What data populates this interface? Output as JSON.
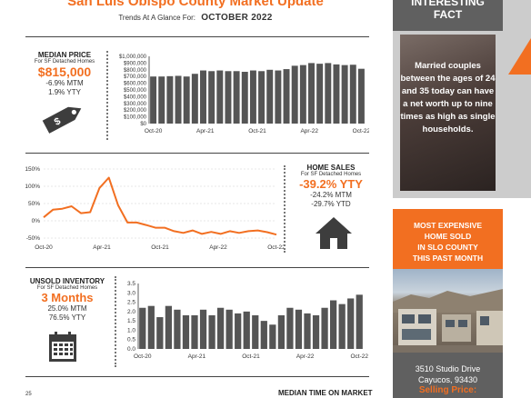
{
  "header": {
    "title": "San Luis Obispo County Market Update",
    "trends_label": "Trends At A Glance For:",
    "month": "OCTOBER 2022"
  },
  "median_price": {
    "heading": "MEDIAN PRICE",
    "subheading": "For SF Detached Homes",
    "value": "$815,000",
    "mtm": "-6.9% MTM",
    "ytd": "1.9% YTY"
  },
  "home_sales": {
    "heading": "HOME SALES",
    "subheading": "For SF Detached Homes",
    "value": "-39.2% YTY",
    "mtm": "-24.2% MTM",
    "ytd": "-29.7% YTD"
  },
  "unsold_inventory": {
    "heading": "UNSOLD INVENTORY",
    "subheading": "For SF Detached Homes",
    "value": "3 Months",
    "mtm": "25.0% MTM",
    "ytd": "76.5% YTY"
  },
  "bottom": {
    "heading": "MEDIAN TIME ON MARKET",
    "tick_top": "25"
  },
  "sidebar": {
    "fact_title_1": "INTERESTING",
    "fact_title_2": "FACT",
    "fact_text": "Married couples between the ages of 24 and 35 today can have a net worth up to nine times as high as single households.",
    "expensive_lines": [
      "MOST EXPENSIVE",
      "HOME SOLD",
      "IN SLO COUNTY",
      "THIS PAST MONTH"
    ],
    "address_1": "3510 Studio Drive",
    "address_2": "Cayucos, 93430",
    "price_label": "Selling Price:"
  },
  "colors": {
    "accent": "#f26f21",
    "bars": "#555555"
  },
  "icons": [
    "price-tag-icon",
    "house-icon",
    "calendar-icon"
  ],
  "chart_data": [
    {
      "type": "bar",
      "name": "median-price-chart",
      "x_labels": [
        "Oct-20",
        "Apr-21",
        "Oct-21",
        "Apr-22",
        "Oct-22"
      ],
      "yticks": [
        "$1,000,000",
        "$900,000",
        "$800,000",
        "$700,000",
        "$600,000",
        "$500,000",
        "$400,000",
        "$300,000",
        "$200,000",
        "$100,000",
        "$0"
      ],
      "ylim": [
        0,
        1000000
      ],
      "values": [
        700000,
        700000,
        705000,
        710000,
        700000,
        740000,
        790000,
        780000,
        790000,
        780000,
        780000,
        770000,
        790000,
        780000,
        800000,
        790000,
        810000,
        860000,
        870000,
        900000,
        890000,
        900000,
        880000,
        870000,
        875000,
        815000
      ]
    },
    {
      "type": "line",
      "name": "home-sales-chart",
      "x_labels": [
        "Oct-20",
        "Apr-21",
        "Oct-21",
        "Apr-22",
        "Oct-22"
      ],
      "yticks": [
        "150%",
        "100%",
        "50%",
        "0%",
        "-50%"
      ],
      "ylim": [
        -50,
        150
      ],
      "values": [
        10,
        32,
        35,
        42,
        22,
        25,
        95,
        125,
        45,
        -5,
        -5,
        -12,
        -20,
        -20,
        -30,
        -35,
        -28,
        -38,
        -32,
        -38,
        -30,
        -35,
        -30,
        -28,
        -33,
        -40
      ]
    },
    {
      "type": "bar",
      "name": "unsold-inventory-chart",
      "x_labels": [
        "Oct-20",
        "Apr-21",
        "Oct-21",
        "Apr-22",
        "Oct-22"
      ],
      "yticks": [
        "3.5",
        "3.0",
        "2.5",
        "2.0",
        "1.5",
        "1.0",
        "0.5",
        "0.0"
      ],
      "ylim": [
        0,
        3.5
      ],
      "values": [
        2.2,
        2.3,
        1.7,
        2.3,
        2.1,
        1.8,
        1.8,
        2.1,
        1.8,
        2.2,
        2.1,
        1.9,
        2.0,
        1.8,
        1.5,
        1.3,
        1.8,
        2.2,
        2.1,
        1.9,
        1.8,
        2.2,
        2.6,
        2.4,
        2.7,
        2.9
      ]
    }
  ]
}
